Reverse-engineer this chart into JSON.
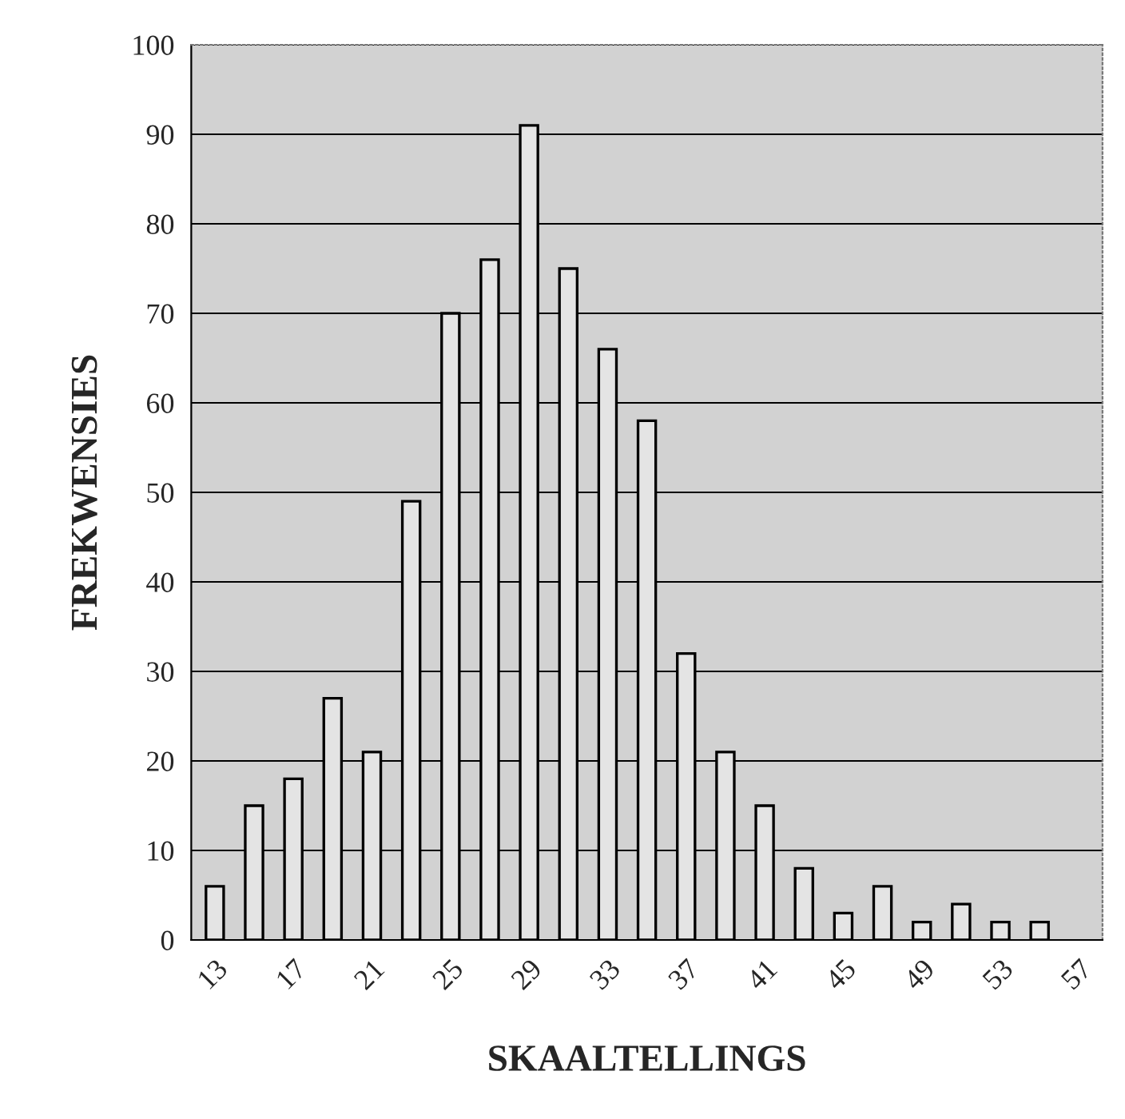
{
  "chart_data": {
    "type": "bar",
    "xlabel": "SKAALTELLINGS",
    "ylabel": "FREKWENSIES",
    "categories": [
      "13",
      null,
      "17",
      null,
      "21",
      null,
      "25",
      null,
      "29",
      null,
      "33",
      null,
      "37",
      null,
      "41",
      null,
      "45",
      null,
      "49",
      null,
      "53",
      null,
      "57"
    ],
    "values": [
      6,
      15,
      18,
      27,
      21,
      49,
      70,
      76,
      91,
      75,
      66,
      58,
      32,
      21,
      15,
      8,
      3,
      6,
      2,
      4,
      2,
      2,
      0
    ],
    "color": "#e4e4e4",
    "ylim": [
      0,
      100
    ],
    "yticks": [
      0,
      10,
      20,
      30,
      40,
      50,
      60,
      70,
      80,
      90,
      100
    ],
    "grid": "y"
  }
}
